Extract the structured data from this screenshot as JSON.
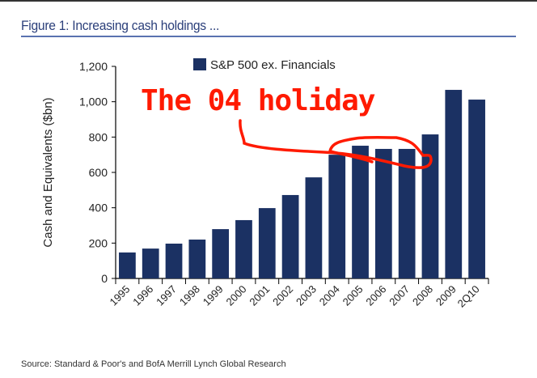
{
  "chart_data": {
    "type": "bar",
    "title": "Figure 1: Increasing cash holdings ...",
    "ylabel": "Cash and Equivalents ($bn)",
    "xlabel": "",
    "ylim": [
      0,
      1200
    ],
    "yticks": [
      0,
      200,
      400,
      600,
      800,
      1000,
      1200
    ],
    "ytick_labels": [
      "0",
      "200",
      "400",
      "600",
      "800",
      "1,000",
      "1,200"
    ],
    "categories": [
      "1995",
      "1996",
      "1997",
      "1998",
      "1999",
      "2000",
      "2001",
      "2002",
      "2003",
      "2004",
      "2005",
      "2006",
      "2007",
      "2008",
      "2009",
      "2Q10"
    ],
    "series": [
      {
        "name": "S&P 500 ex. Financials",
        "color": "#1b3163",
        "values": [
          147,
          169,
          197,
          220,
          279,
          330,
          398,
          472,
          572,
          700,
          751,
          733,
          733,
          815,
          1067,
          1012
        ]
      }
    ],
    "legend_position": "top",
    "grid": false,
    "annotation": {
      "text": "The 04 holiday",
      "color": "#ff1a00"
    },
    "source": "Source: Standard & Poor's and BofA Merrill Lynch Global Research"
  }
}
